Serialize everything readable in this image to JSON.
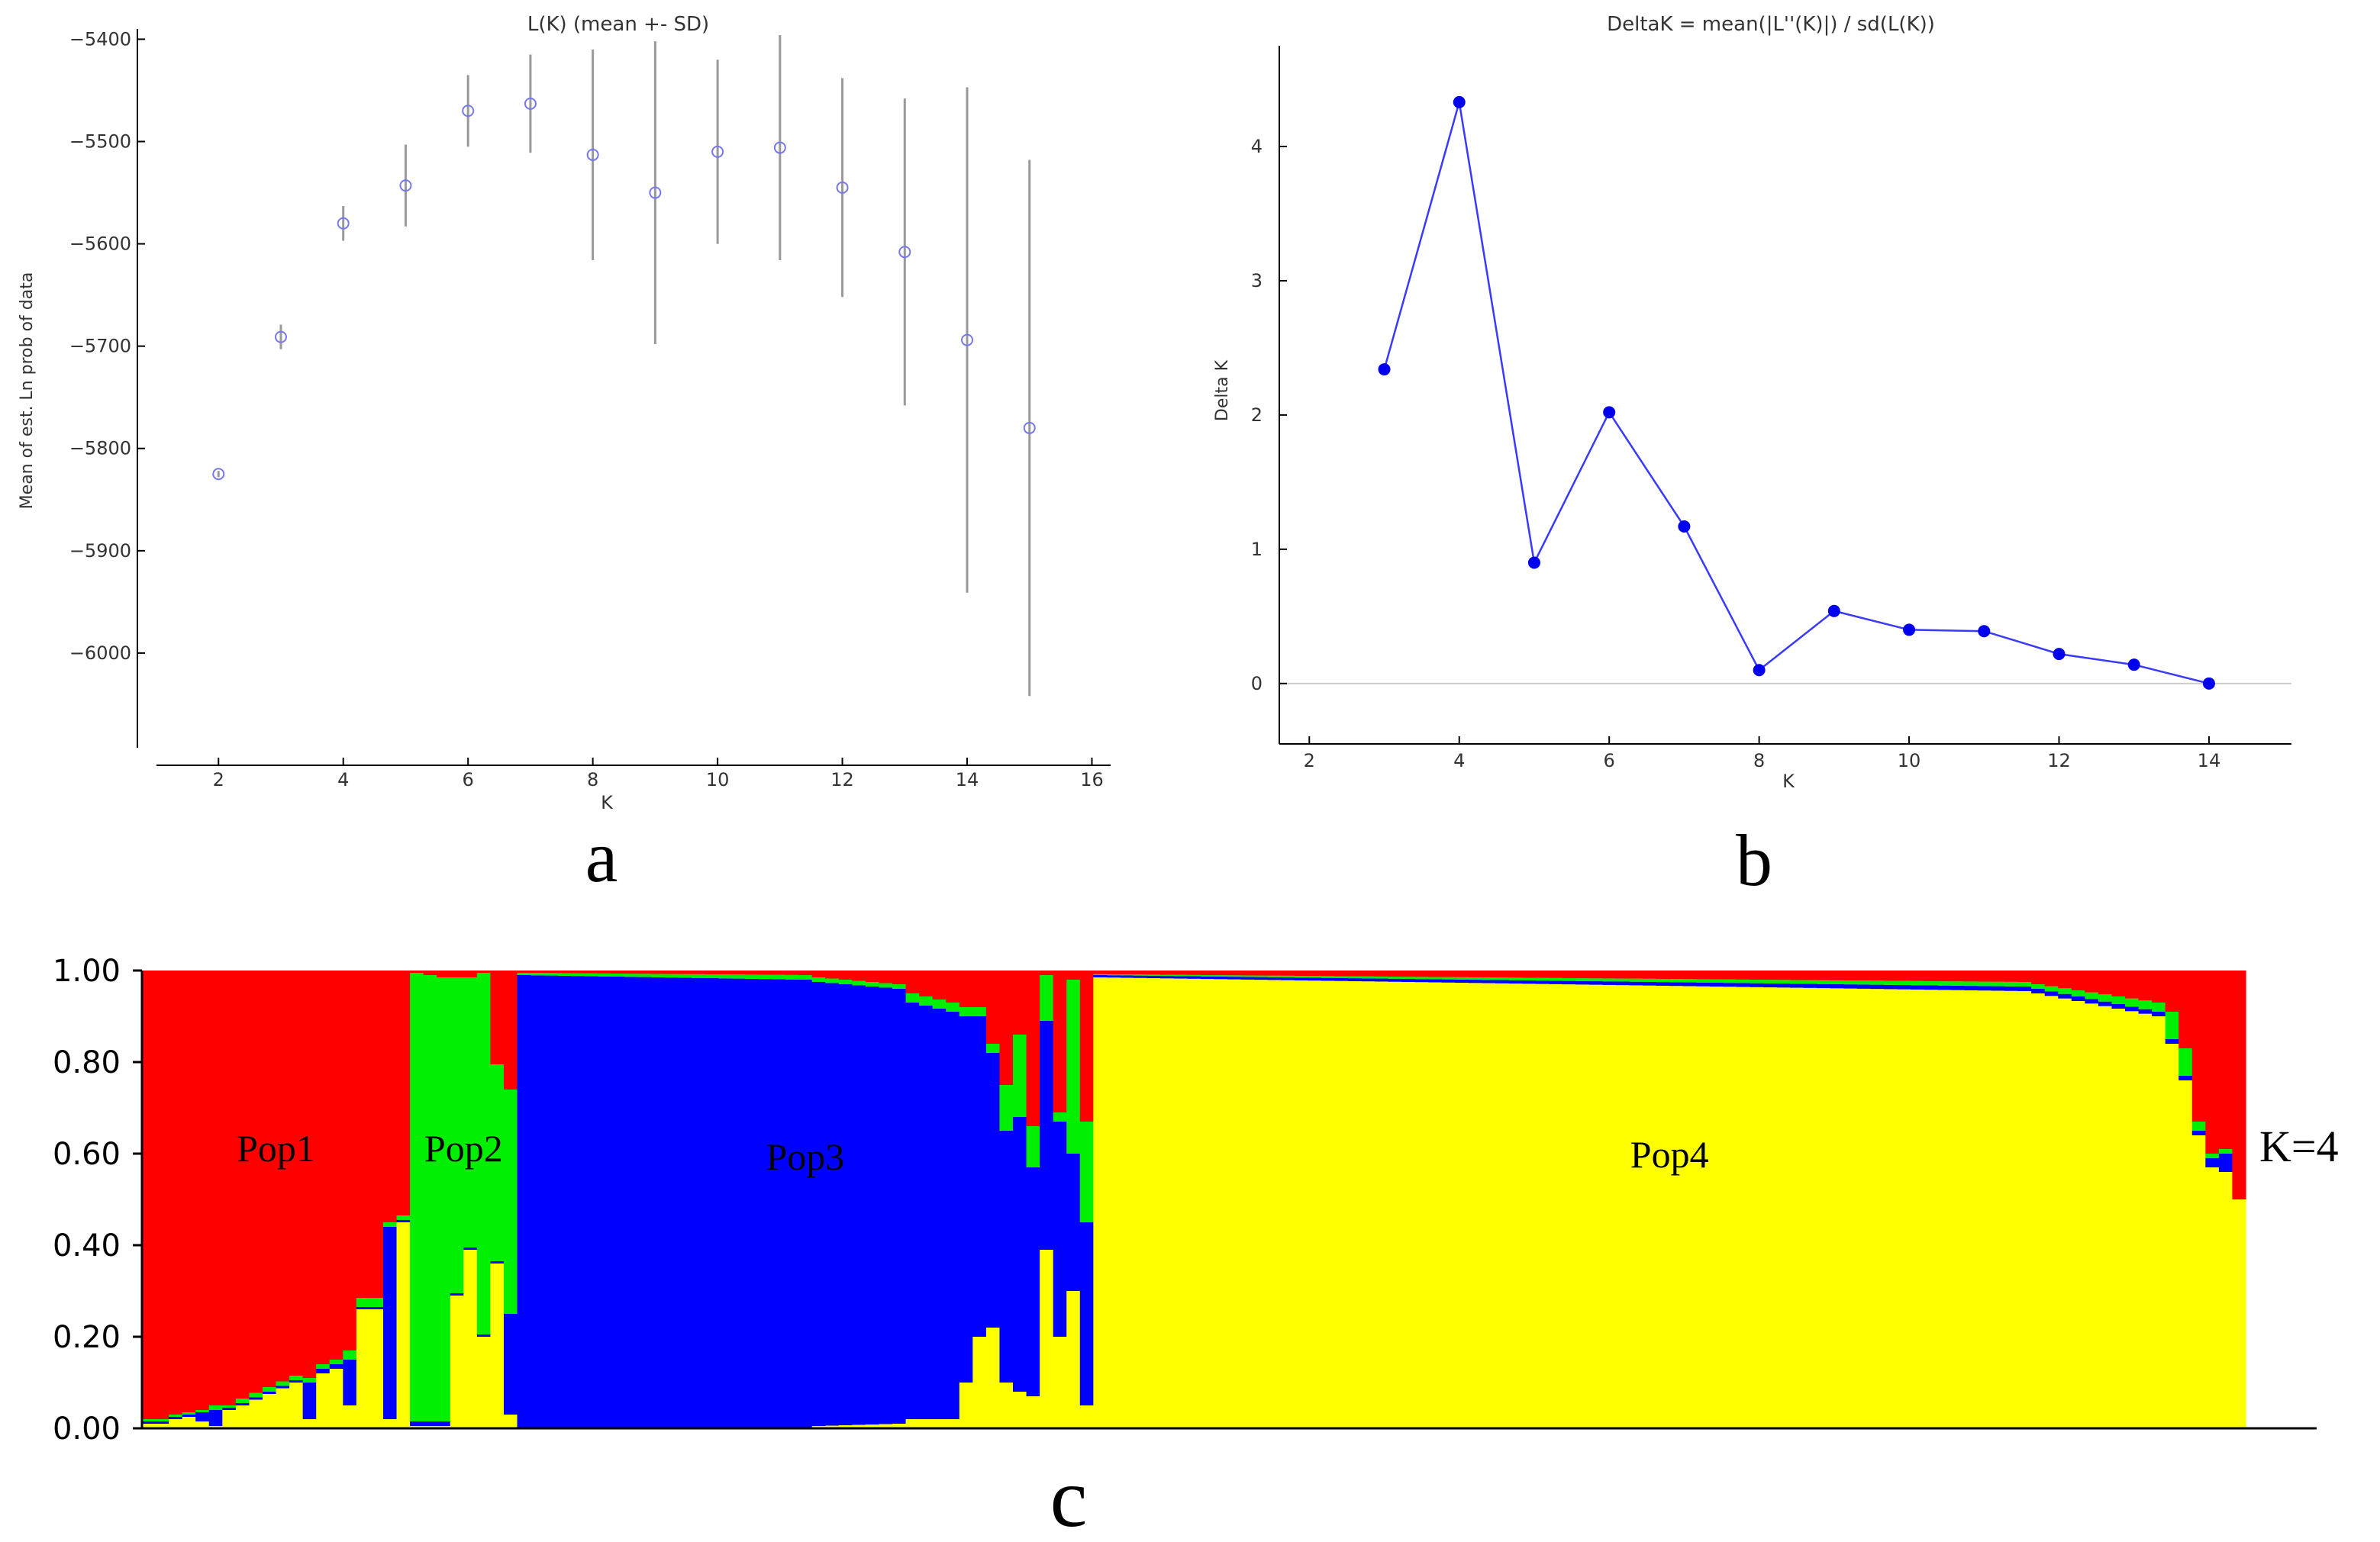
{
  "chart_data": [
    {
      "id": "a",
      "type": "scatter",
      "panel_label": "a",
      "title": "L(K) (mean +- SD)",
      "xlabel": "K",
      "ylabel": "Mean of est. Ln prob of data",
      "xlim": [
        0.7,
        16.3
      ],
      "ylim": [
        -6100,
        -5390
      ],
      "xticks": [
        2,
        4,
        6,
        8,
        10,
        12,
        14,
        16
      ],
      "yticks": [
        -6000,
        -5900,
        -5800,
        -5700,
        -5600,
        -5500,
        -5400
      ],
      "marker_color": "#7777ee",
      "errorbar_color": "#999999",
      "points": [
        {
          "k": 2,
          "mean": -5825,
          "sd": 3
        },
        {
          "k": 3,
          "mean": -5691,
          "sd": 12
        },
        {
          "k": 4,
          "mean": -5580,
          "sd": 17
        },
        {
          "k": 5,
          "mean": -5543,
          "sd": 40
        },
        {
          "k": 6,
          "mean": -5470,
          "sd": 35
        },
        {
          "k": 7,
          "mean": -5463,
          "sd": 48
        },
        {
          "k": 8,
          "mean": -5513,
          "sd": 103
        },
        {
          "k": 9,
          "mean": -5550,
          "sd": 148
        },
        {
          "k": 10,
          "mean": -5510,
          "sd": 90
        },
        {
          "k": 11,
          "mean": -5506,
          "sd": 110
        },
        {
          "k": 12,
          "mean": -5545,
          "sd": 107
        },
        {
          "k": 13,
          "mean": -5608,
          "sd": 150
        },
        {
          "k": 14,
          "mean": -5694,
          "sd": 247
        },
        {
          "k": 15,
          "mean": -5780,
          "sd": 262
        }
      ]
    },
    {
      "id": "b",
      "type": "line",
      "panel_label": "b",
      "title": "DeltaK = mean(|L''(K)|) / sd(L(K))",
      "xlabel": "K",
      "ylabel": "Delta K",
      "xlim": [
        1.6,
        15.1
      ],
      "ylim": [
        -0.45,
        4.75
      ],
      "xticks": [
        2,
        4,
        6,
        8,
        10,
        12,
        14
      ],
      "yticks": [
        0,
        1,
        2,
        3,
        4
      ],
      "line_color": "#3a3aff",
      "zero_line_color": "#cccccc",
      "x": [
        3,
        4,
        5,
        6,
        7,
        8,
        9,
        10,
        11,
        12,
        13,
        14
      ],
      "y": [
        2.34,
        4.33,
        0.9,
        2.02,
        1.17,
        0.1,
        0.54,
        0.4,
        0.39,
        0.22,
        0.14,
        0.0
      ]
    },
    {
      "id": "c",
      "type": "bar",
      "panel_label": "c",
      "stacked": true,
      "annotation": "K=4",
      "ylim": [
        0,
        1
      ],
      "yticks": [
        "0.00",
        "0.20",
        "0.40",
        "0.60",
        "0.80",
        "1.00"
      ],
      "series": [
        {
          "name": "Pop1",
          "color": "#ff0000"
        },
        {
          "name": "Pop2",
          "color": "#00ee00"
        },
        {
          "name": "Pop3",
          "color": "#0000ff"
        },
        {
          "name": "Pop4",
          "color": "#ffff00"
        }
      ],
      "stack_order": [
        "Pop4",
        "Pop3",
        "Pop2",
        "Pop1"
      ],
      "population_labels": [
        "Pop1",
        "Pop2",
        "Pop3",
        "Pop4"
      ],
      "segments": [
        {
          "pop": "Pop1",
          "n": 2,
          "start": [
            0.01,
            0.005,
            0.005
          ],
          "end": [
            0.01,
            0.005,
            0.005
          ]
        },
        {
          "pop": "Pop1",
          "n": 2,
          "start": [
            0.02,
            0.005,
            0.005
          ],
          "end": [
            0.025,
            0.005,
            0.005
          ]
        },
        {
          "pop": "Pop1",
          "n": 1,
          "start": [
            0.015,
            0.02,
            0.005
          ],
          "end": [
            0.015,
            0.02,
            0.005
          ]
        },
        {
          "pop": "Pop1",
          "n": 1,
          "start": [
            0.005,
            0.035,
            0.01
          ],
          "end": [
            0.005,
            0.035,
            0.01
          ]
        },
        {
          "pop": "Pop1",
          "n": 1,
          "start": [
            0.04,
            0.005,
            0.005
          ],
          "end": [
            0.04,
            0.005,
            0.005
          ]
        },
        {
          "pop": "Pop1",
          "n": 5,
          "start": [
            0.05,
            0.005,
            0.01
          ],
          "end": [
            0.1,
            0.005,
            0.01
          ]
        },
        {
          "pop": "Pop1",
          "n": 1,
          "start": [
            0.02,
            0.08,
            0.01
          ],
          "end": [
            0.02,
            0.08,
            0.01
          ]
        },
        {
          "pop": "Pop1",
          "n": 2,
          "start": [
            0.12,
            0.01,
            0.01
          ],
          "end": [
            0.13,
            0.01,
            0.01
          ]
        },
        {
          "pop": "Pop1",
          "n": 1,
          "start": [
            0.05,
            0.1,
            0.02
          ],
          "end": [
            0.05,
            0.1,
            0.02
          ]
        },
        {
          "pop": "Pop1",
          "n": 2,
          "start": [
            0.26,
            0.005,
            0.02
          ],
          "end": [
            0.26,
            0.005,
            0.02
          ]
        },
        {
          "pop": "Pop1",
          "n": 1,
          "start": [
            0.02,
            0.42,
            0.01
          ],
          "end": [
            0.02,
            0.42,
            0.01
          ]
        },
        {
          "pop": "Pop1",
          "n": 1,
          "start": [
            0.45,
            0.005,
            0.01
          ],
          "end": [
            0.45,
            0.005,
            0.01
          ]
        },
        {
          "pop": "Pop2",
          "n": 3,
          "start": [
            0.005,
            0.01,
            0.98
          ],
          "end": [
            0.005,
            0.01,
            0.97
          ]
        },
        {
          "pop": "Pop2",
          "n": 1,
          "start": [
            0.29,
            0.005,
            0.69
          ],
          "end": [
            0.29,
            0.005,
            0.69
          ]
        },
        {
          "pop": "Pop2",
          "n": 1,
          "start": [
            0.39,
            0.005,
            0.59
          ],
          "end": [
            0.39,
            0.005,
            0.59
          ]
        },
        {
          "pop": "Pop2",
          "n": 1,
          "start": [
            0.2,
            0.005,
            0.79
          ],
          "end": [
            0.2,
            0.005,
            0.79
          ]
        },
        {
          "pop": "Pop2",
          "n": 1,
          "start": [
            0.36,
            0.005,
            0.43
          ],
          "end": [
            0.36,
            0.005,
            0.43
          ]
        },
        {
          "pop": "Pop2",
          "n": 1,
          "start": [
            0.03,
            0.22,
            0.49
          ],
          "end": [
            0.03,
            0.22,
            0.49
          ]
        },
        {
          "pop": "Pop3",
          "n": 22,
          "start": [
            0.0,
            0.99,
            0.005
          ],
          "end": [
            0.0,
            0.98,
            0.01
          ]
        },
        {
          "pop": "Pop3",
          "n": 7,
          "start": [
            0.005,
            0.97,
            0.01
          ],
          "end": [
            0.01,
            0.95,
            0.01
          ]
        },
        {
          "pop": "Pop3",
          "n": 4,
          "start": [
            0.02,
            0.91,
            0.02
          ],
          "end": [
            0.02,
            0.89,
            0.02
          ]
        },
        {
          "pop": "Pop3",
          "n": 2,
          "start": [
            0.1,
            0.8,
            0.02
          ],
          "end": [
            0.2,
            0.7,
            0.02
          ]
        },
        {
          "pop": "Pop3",
          "n": 1,
          "start": [
            0.22,
            0.6,
            0.02
          ],
          "end": [
            0.22,
            0.6,
            0.02
          ]
        },
        {
          "pop": "Pop3",
          "n": 1,
          "start": [
            0.1,
            0.55,
            0.1
          ],
          "end": [
            0.1,
            0.55,
            0.1
          ]
        },
        {
          "pop": "Pop3",
          "n": 1,
          "start": [
            0.08,
            0.6,
            0.18
          ],
          "end": [
            0.08,
            0.6,
            0.18
          ]
        },
        {
          "pop": "Pop3",
          "n": 1,
          "start": [
            0.07,
            0.5,
            0.09
          ],
          "end": [
            0.07,
            0.5,
            0.09
          ]
        },
        {
          "pop": "Pop3",
          "n": 1,
          "start": [
            0.39,
            0.5,
            0.1
          ],
          "end": [
            0.39,
            0.5,
            0.1
          ]
        },
        {
          "pop": "Pop3",
          "n": 1,
          "start": [
            0.2,
            0.47,
            0.02
          ],
          "end": [
            0.2,
            0.47,
            0.02
          ]
        },
        {
          "pop": "Pop3",
          "n": 1,
          "start": [
            0.3,
            0.3,
            0.38
          ],
          "end": [
            0.3,
            0.3,
            0.38
          ]
        },
        {
          "pop": "Pop3",
          "n": 1,
          "start": [
            0.05,
            0.4,
            0.22
          ],
          "end": [
            0.05,
            0.4,
            0.22
          ]
        },
        {
          "pop": "Pop4",
          "n": 70,
          "start": [
            0.985,
            0.005,
            0.002
          ],
          "end": [
            0.955,
            0.01,
            0.01
          ]
        },
        {
          "pop": "Pop4",
          "n": 10,
          "start": [
            0.95,
            0.01,
            0.01
          ],
          "end": [
            0.9,
            0.01,
            0.02
          ]
        },
        {
          "pop": "Pop4",
          "n": 2,
          "start": [
            0.84,
            0.01,
            0.06
          ],
          "end": [
            0.76,
            0.01,
            0.06
          ]
        },
        {
          "pop": "Pop4",
          "n": 1,
          "start": [
            0.64,
            0.01,
            0.02
          ],
          "end": [
            0.64,
            0.01,
            0.02
          ]
        },
        {
          "pop": "Pop4",
          "n": 1,
          "start": [
            0.57,
            0.02,
            0.01
          ],
          "end": [
            0.57,
            0.02,
            0.01
          ]
        },
        {
          "pop": "Pop4",
          "n": 1,
          "start": [
            0.56,
            0.04,
            0.01
          ],
          "end": [
            0.56,
            0.04,
            0.01
          ]
        },
        {
          "pop": "Pop4",
          "n": 1,
          "start": [
            0.5,
            0.0,
            0.0
          ],
          "end": [
            0.5,
            0.0,
            0.0
          ]
        }
      ]
    }
  ]
}
